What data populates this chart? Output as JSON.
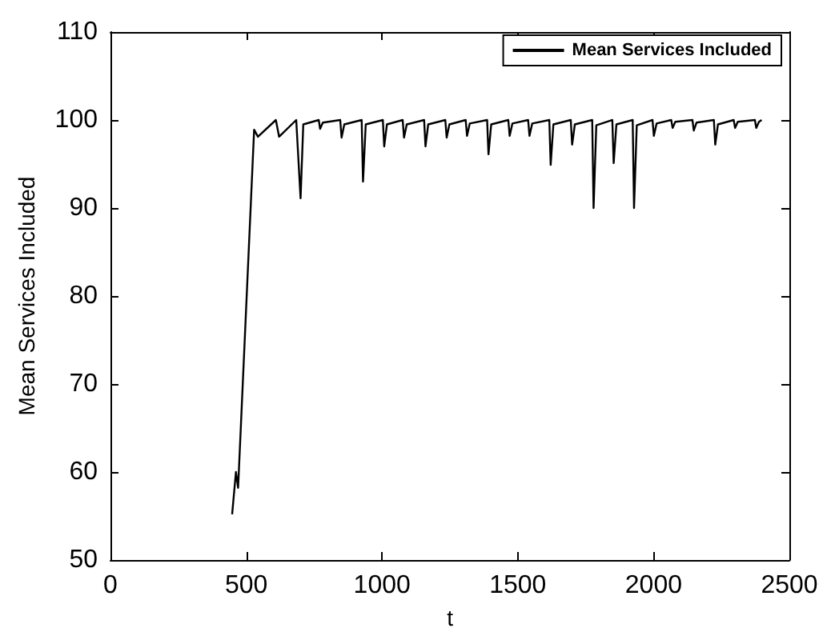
{
  "chart_data": {
    "type": "line",
    "xlabel": "t",
    "ylabel": "Mean Services Included",
    "xlim": [
      0,
      2500
    ],
    "xticks": [
      0,
      500,
      1000,
      1500,
      2000,
      2500
    ],
    "ylim": [
      50,
      110
    ],
    "yticks": [
      50,
      60,
      70,
      80,
      90,
      100,
      110
    ],
    "grid": false,
    "legend": "top right",
    "marker": "none",
    "line_style": "solid",
    "series": [
      {
        "name": "Mean Services Included",
        "color": "#000000",
        "x": [
          448,
          462,
          470,
          529,
          543,
          609,
          621,
          684,
          700,
          710,
          767,
          772,
          782,
          846,
          851,
          861,
          925,
          930,
          940,
          1003,
          1008,
          1018,
          1076,
          1081,
          1091,
          1155,
          1160,
          1170,
          1233,
          1238,
          1248,
          1308,
          1313,
          1323,
          1387,
          1392,
          1402,
          1465,
          1470,
          1480,
          1538,
          1543,
          1553,
          1616,
          1621,
          1631,
          1695,
          1700,
          1710,
          1774,
          1779,
          1789,
          1848,
          1853,
          1863,
          1923,
          1928,
          1938,
          1996,
          2001,
          2011,
          2065,
          2070,
          2080,
          2143,
          2148,
          2158,
          2222,
          2227,
          2237,
          2295,
          2300,
          2310,
          2373,
          2378,
          2388,
          2398
        ],
        "values": [
          55.2,
          60,
          58.2,
          98.9,
          98.1,
          100,
          98.1,
          100,
          91.1,
          99.5,
          100,
          99,
          99.7,
          100,
          98,
          99.5,
          100,
          93,
          99.5,
          100,
          97,
          99.5,
          100,
          98,
          99.5,
          100,
          97,
          99.5,
          100,
          98,
          99.5,
          100,
          98.2,
          99.6,
          100,
          96.1,
          99.5,
          100,
          98.2,
          99.6,
          100,
          98.2,
          99.6,
          100,
          94.9,
          99.5,
          100,
          97.2,
          99.5,
          100,
          90,
          99.4,
          100,
          95.1,
          99.5,
          100,
          90,
          99.4,
          100,
          98.2,
          99.6,
          100,
          99.1,
          99.8,
          100,
          98.8,
          99.7,
          100,
          97.2,
          99.5,
          100,
          99.1,
          99.8,
          100,
          99.1,
          99.8,
          100
        ]
      }
    ]
  }
}
